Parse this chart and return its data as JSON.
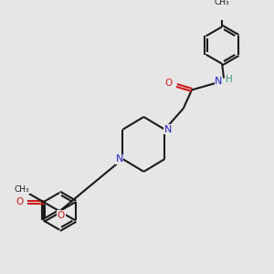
{
  "bg_color": "#e6e6e6",
  "bond_color": "#1a1a1a",
  "N_color": "#2020bb",
  "O_color": "#cc1a1a",
  "H_color": "#3a9a7a",
  "line_width": 1.5,
  "dbo": 0.018,
  "xlim": [
    0,
    3.0
  ],
  "ylim": [
    0,
    3.0
  ]
}
